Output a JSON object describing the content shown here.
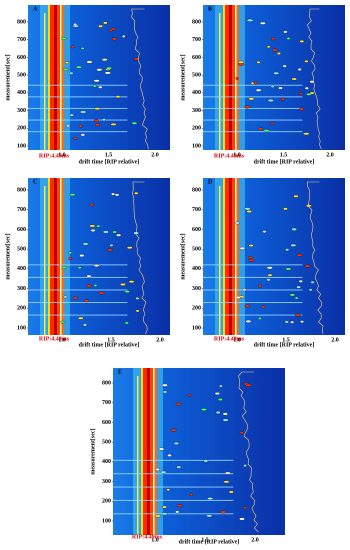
{
  "panels": [
    {
      "label": "A",
      "ylabel": "measurement[sec]",
      "xlabel": "drift time [RIP relative]",
      "rip": "RIP:4.49ms",
      "yticks": [
        "100",
        "200",
        "300",
        "400",
        "500",
        "600",
        "700",
        "800"
      ],
      "xticks": [
        "1.0",
        "1.5",
        "2.0"
      ]
    },
    {
      "label": "B",
      "ylabel": "measurement[sec]",
      "xlabel": "drift time [RIP relative]",
      "rip": "RIP:4.49ms",
      "yticks": [
        "100",
        "200",
        "300",
        "400",
        "500",
        "600",
        "700",
        "800"
      ],
      "xticks": [
        "1.0",
        "1.5",
        "2.0"
      ]
    },
    {
      "label": "C",
      "ylabel": "measurement[sec]",
      "xlabel": "drift time [RIP relative]",
      "rip": "RIP:4.49ms",
      "yticks": [
        "100",
        "200",
        "300",
        "400",
        "500",
        "600",
        "700",
        "800"
      ],
      "xticks": [
        "1.0",
        "1.5",
        "2.0"
      ]
    },
    {
      "label": "D",
      "ylabel": "measurement[sec]",
      "xlabel": "drift time [RIP relative]",
      "rip": "RIP:4.49ms",
      "yticks": [
        "100",
        "200",
        "300",
        "400",
        "500",
        "600",
        "700",
        "800"
      ],
      "xticks": [
        "1.0",
        "1.5",
        "2.0"
      ]
    },
    {
      "label": "E",
      "ylabel": "measurement[sec]",
      "xlabel": "drift time [RIP relative]",
      "rip": "RIP:4.49ms",
      "yticks": [
        "100",
        "200",
        "300",
        "400",
        "500",
        "600",
        "700",
        "800"
      ],
      "xticks": [
        "1.0",
        "1.5",
        "2.0"
      ]
    }
  ]
}
